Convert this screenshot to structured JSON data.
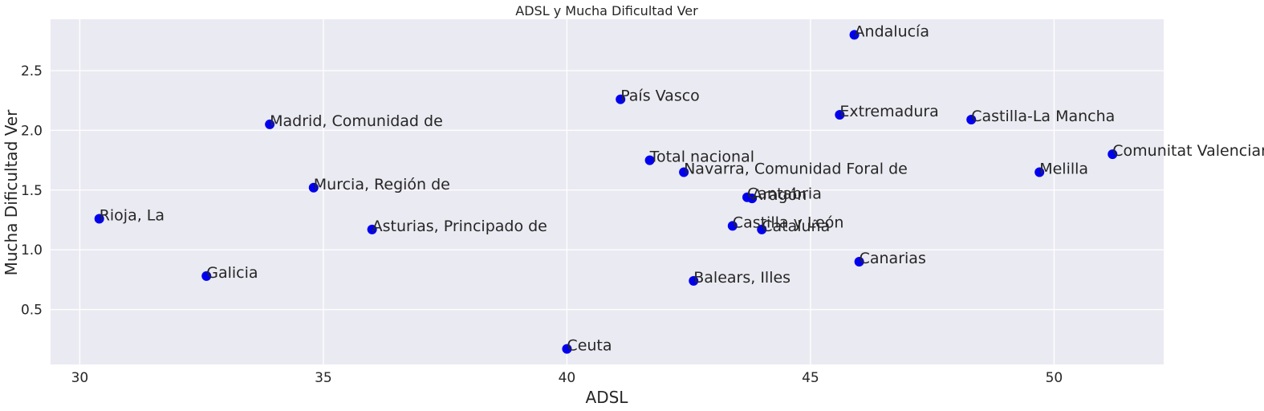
{
  "chart_data": {
    "type": "scatter",
    "title": "ADSL y Mucha Dificultad Ver",
    "xlabel": "ADSL",
    "ylabel": "Mucha Dificultad Ver",
    "xlim": [
      29.4,
      52.25
    ],
    "ylim": [
      0.04,
      2.93
    ],
    "xticks": [
      30,
      35,
      40,
      45,
      50
    ],
    "yticks": [
      0.5,
      1.0,
      1.5,
      2.0,
      2.5
    ],
    "xtick_labels": [
      "30",
      "35",
      "40",
      "45",
      "50"
    ],
    "ytick_labels": [
      "0.5",
      "1.0",
      "1.5",
      "2.0",
      "2.5"
    ],
    "grid": true,
    "point_color": "#0000ee",
    "background_color": "#eaeaf2",
    "points": [
      {
        "label": "Andalucía",
        "x": 45.9,
        "y": 2.8
      },
      {
        "label": "País Vasco",
        "x": 41.1,
        "y": 2.26
      },
      {
        "label": "Extremadura",
        "x": 45.6,
        "y": 2.13
      },
      {
        "label": "Castilla-La Mancha",
        "x": 48.3,
        "y": 2.09
      },
      {
        "label": "Madrid, Comunidad de",
        "x": 33.9,
        "y": 2.05
      },
      {
        "label": "Comunitat Valenciana",
        "x": 51.2,
        "y": 1.8
      },
      {
        "label": "Total nacional",
        "x": 41.7,
        "y": 1.75
      },
      {
        "label": "Navarra, Comunidad Foral de",
        "x": 42.4,
        "y": 1.65
      },
      {
        "label": "Melilla",
        "x": 49.7,
        "y": 1.65
      },
      {
        "label": "Murcia, Región de",
        "x": 34.8,
        "y": 1.52
      },
      {
        "label": "Cantabria",
        "x": 43.7,
        "y": 1.44
      },
      {
        "label": "Aragón",
        "x": 43.8,
        "y": 1.43
      },
      {
        "label": "Rioja, La",
        "x": 30.4,
        "y": 1.26
      },
      {
        "label": "Castilla y León",
        "x": 43.4,
        "y": 1.2
      },
      {
        "label": "Asturias, Principado de",
        "x": 36.0,
        "y": 1.17
      },
      {
        "label": "Cataluña",
        "x": 44.0,
        "y": 1.17
      },
      {
        "label": "Canarias",
        "x": 46.0,
        "y": 0.9
      },
      {
        "label": "Galicia",
        "x": 32.6,
        "y": 0.78
      },
      {
        "label": "Balears, Illes",
        "x": 42.6,
        "y": 0.74
      },
      {
        "label": "Ceuta",
        "x": 40.0,
        "y": 0.17
      }
    ]
  }
}
